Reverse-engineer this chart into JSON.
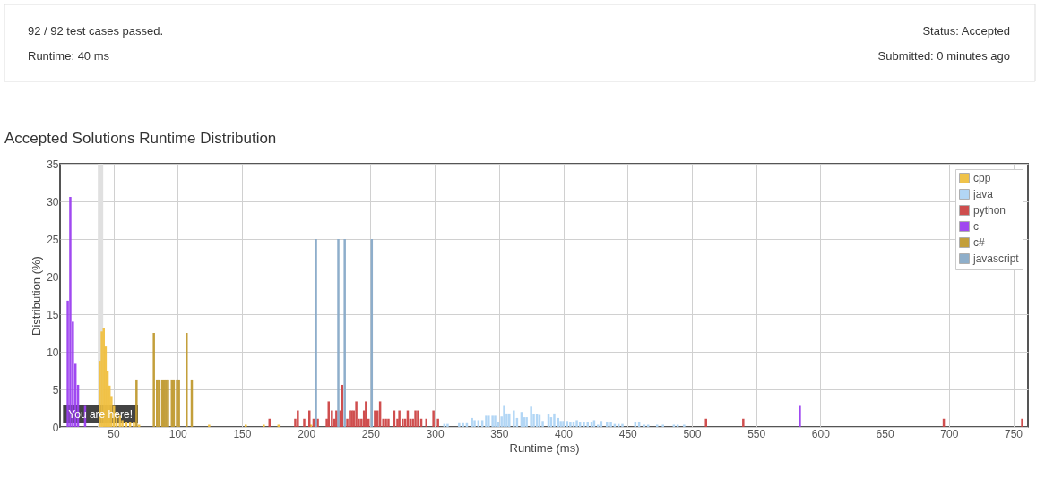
{
  "chart_data": {
    "type": "bar",
    "title": "Accepted Solutions Runtime Distribution",
    "xlabel": "Runtime (ms)",
    "ylabel": "Distribution (%)",
    "annotations": [
      "92 / 92 test cases passed.",
      "Runtime: 40 ms",
      "Status: Accepted",
      "Submitted: 0 minutes ago"
    ],
    "series": [
      {
        "name": "cpp",
        "color": "#f0c040",
        "x": [
          39.5,
          41,
          42.5,
          44,
          45.5,
          47,
          48.5,
          50.5,
          52.5,
          55,
          57,
          60,
          63,
          66,
          70,
          124.5,
          153,
          167,
          178.5,
          203.8
        ],
        "values": [
          8.8,
          12.7,
          13.1,
          10.7,
          7.5,
          5.5,
          4,
          2.8,
          2,
          1.5,
          0.9,
          0.6,
          0.7,
          0.6,
          0.3,
          0.3,
          0.3,
          0.3,
          0.3,
          0.3
        ]
      },
      {
        "name": "java",
        "color": "#aed4f4",
        "x": [
          307.5,
          310,
          319,
          322,
          325,
          329,
          331,
          334,
          337,
          340,
          342,
          345,
          347,
          349.5,
          352,
          354,
          356,
          358,
          361.5,
          364,
          367.5,
          369.5,
          371.5,
          375,
          377,
          379.5,
          381.5,
          384,
          388.5,
          390.5,
          393,
          396,
          398,
          400,
          403,
          405.5,
          408,
          410.5,
          413,
          416,
          419,
          422,
          424,
          427,
          429.5,
          434,
          437,
          440,
          443,
          446,
          456,
          459,
          463,
          466,
          473,
          477.5,
          486,
          489,
          494
        ],
        "values": [
          0.4,
          0.4,
          0.5,
          0.5,
          0.5,
          1.2,
          0.9,
          0.9,
          0.9,
          1.5,
          1.5,
          1.5,
          1.5,
          0.7,
          1.4,
          2.8,
          1.8,
          1.8,
          2.2,
          1.2,
          2,
          1.3,
          1.3,
          2.7,
          1.7,
          1.7,
          1.6,
          0.8,
          1.7,
          1.3,
          1.8,
          1.2,
          0.8,
          0.8,
          0.8,
          0.6,
          0.6,
          0.9,
          0.6,
          0.6,
          0.6,
          0.6,
          0.9,
          0.3,
          0.8,
          0.6,
          0.6,
          0.4,
          0.4,
          0.4,
          0.6,
          0.6,
          0.3,
          0.3,
          0.3,
          0.3,
          0.3,
          0.3,
          0.3
        ]
      },
      {
        "name": "python",
        "color": "#cc4444",
        "x": [
          171.5,
          191.5,
          193.5,
          198.5,
          202.5,
          205.8,
          209,
          216,
          217.5,
          220,
          222,
          223.5,
          226.5,
          228,
          232,
          234,
          235.5,
          237,
          239,
          241,
          243,
          245,
          246.5,
          248.5,
          253.5,
          255.5,
          257.5,
          260,
          262,
          264,
          268.5,
          271,
          272.5,
          275,
          277,
          279,
          281,
          283,
          285,
          287,
          289.5,
          293.5,
          299,
          302.5,
          511,
          540,
          696,
          757
        ],
        "values": [
          1.1,
          1.1,
          2.2,
          1.1,
          2.2,
          1.1,
          1.1,
          1.1,
          3.4,
          2.2,
          1.1,
          2.2,
          2.2,
          5.6,
          1.1,
          2.2,
          2.2,
          2.2,
          3.4,
          1.1,
          1.1,
          2.2,
          3.4,
          1.1,
          2.2,
          2.2,
          3.4,
          1.1,
          1.1,
          1.1,
          2.2,
          1.1,
          2.2,
          1.1,
          1.1,
          2.2,
          1.1,
          1.1,
          2.2,
          2.2,
          1.1,
          1.1,
          2.2,
          1.1,
          1.1,
          1.1,
          1.1,
          1.1
        ]
      },
      {
        "name": "c",
        "color": "#9b3ff0",
        "x": [
          14.5,
          16.5,
          18.5,
          20.5,
          22.5,
          28,
          584
        ],
        "values": [
          16.8,
          30.6,
          14,
          8.4,
          5.6,
          2.8,
          2.8
        ]
      },
      {
        "name": "c#",
        "color": "#c09a30",
        "x": [
          68,
          81.5,
          84,
          85.5,
          88,
          89.5,
          91,
          92.5,
          95.5,
          97,
          99.5,
          101,
          107,
          111
        ],
        "values": [
          6.2,
          12.5,
          6.2,
          6.2,
          6.2,
          6.2,
          6.2,
          6.2,
          6.2,
          6.2,
          6.2,
          6.2,
          12.5,
          6.2
        ]
      },
      {
        "name": "javascript",
        "color": "#88aac8",
        "x": [
          207.6,
          225,
          230,
          251
        ],
        "values": [
          25,
          25,
          25,
          25
        ]
      }
    ],
    "xlim": [
      12,
      758
    ],
    "xticks": [
      50,
      100,
      150,
      200,
      250,
      300,
      350,
      400,
      450,
      500,
      550,
      600,
      650,
      700,
      750
    ],
    "ylim": [
      0,
      35
    ],
    "yticks": [
      0,
      5,
      10,
      15,
      20,
      25,
      30,
      35
    ],
    "ref_lines": [
      {
        "axis": "x",
        "value": 40,
        "label": "You are here!",
        "color": "#e0e0e0"
      }
    ],
    "grid": true,
    "legend": "top right"
  }
}
